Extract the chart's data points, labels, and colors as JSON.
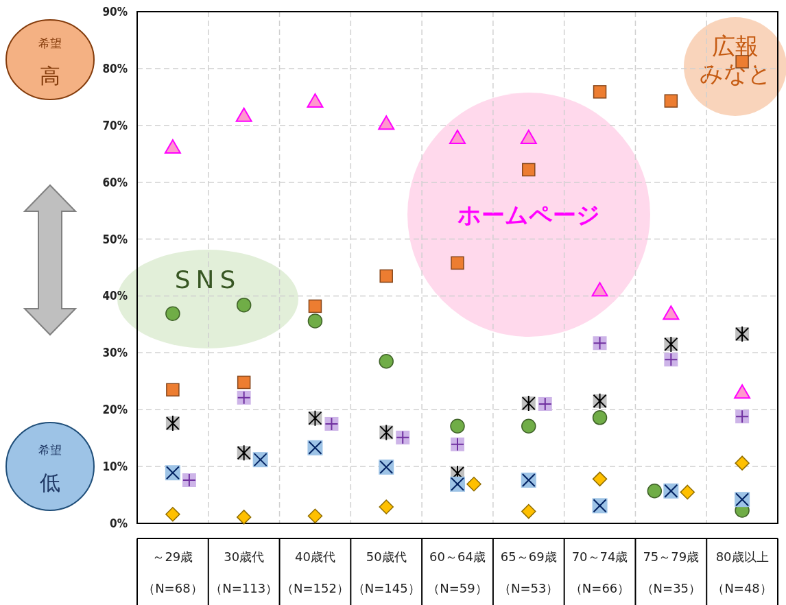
{
  "chart_data": {
    "type": "scatter",
    "categories": [
      "～29歳（N=68）",
      "30歳代（N=113）",
      "40歳代（N=152）",
      "50歳代（N=145）",
      "60～64歳（N=59）",
      "65～69歳（N=53）",
      "70～74歳（N=66）",
      "75～79歳（N=35）",
      "80歳以上（N=48）"
    ],
    "series": [
      {
        "color": "#ff99cc",
        "marker": "triangle",
        "values": [
          66.1,
          71.7,
          74.2,
          70.3,
          67.8,
          67.8,
          41.0,
          36.9,
          23.0
        ]
      },
      {
        "color": "#ed7d31",
        "marker": "square",
        "values": [
          23.5,
          24.8,
          38.2,
          43.5,
          45.8,
          62.2,
          75.9,
          74.3,
          81.2
        ]
      },
      {
        "color": "#70ad47",
        "marker": "circle",
        "values": [
          36.9,
          38.4,
          35.6,
          28.5,
          17.1,
          17.1,
          18.6,
          5.7,
          2.3
        ]
      },
      {
        "color": "#c0c0c0",
        "marker": "square",
        "values": [
          17.6,
          12.4,
          18.5,
          16.0,
          8.8,
          21.1,
          21.5,
          31.5,
          33.3
        ]
      },
      {
        "color": "#9dc3e6",
        "marker": "square",
        "values": [
          8.9,
          11.2,
          13.3,
          9.9,
          6.9,
          7.6,
          3.1,
          5.7,
          4.2
        ]
      },
      {
        "color": "#cdb4e8",
        "marker": "square",
        "values": [
          7.6,
          22.1,
          17.5,
          15.1,
          13.9,
          21.0,
          31.7,
          28.8,
          18.8
        ]
      },
      {
        "color": "#ffc000",
        "marker": "diamond",
        "values": [
          1.6,
          1.1,
          1.3,
          2.9,
          6.9,
          2.1,
          7.8,
          5.5,
          10.6
        ]
      }
    ],
    "ylim": [
      0,
      90
    ],
    "yticks": [
      {
        "value": 0,
        "label": "0%"
      },
      {
        "value": 10,
        "label": "10%"
      },
      {
        "value": 20,
        "label": "20%"
      },
      {
        "value": 30,
        "label": "30%"
      },
      {
        "value": 40,
        "label": "40%"
      },
      {
        "value": 50,
        "label": "50%"
      },
      {
        "value": 60,
        "label": "60%"
      },
      {
        "value": 70,
        "label": "70%"
      },
      {
        "value": 80,
        "label": "80%"
      },
      {
        "value": 90,
        "label": "90%"
      }
    ],
    "grid": true,
    "annotations": [
      "希望高",
      "希望低",
      "SNS",
      "ホームページ",
      "広報みなと"
    ]
  }
}
